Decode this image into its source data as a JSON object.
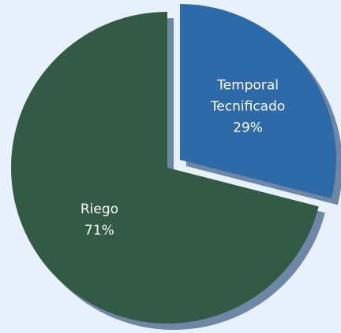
{
  "chart_data": {
    "type": "pie",
    "categories": [
      "Temporal Tecnificado",
      "Riego"
    ],
    "values": [
      29,
      71
    ],
    "value_labels": [
      "29%",
      "71%"
    ],
    "colors": [
      "#2e6aa8",
      "#335a45"
    ],
    "shadow_color": "#6e87a6"
  }
}
